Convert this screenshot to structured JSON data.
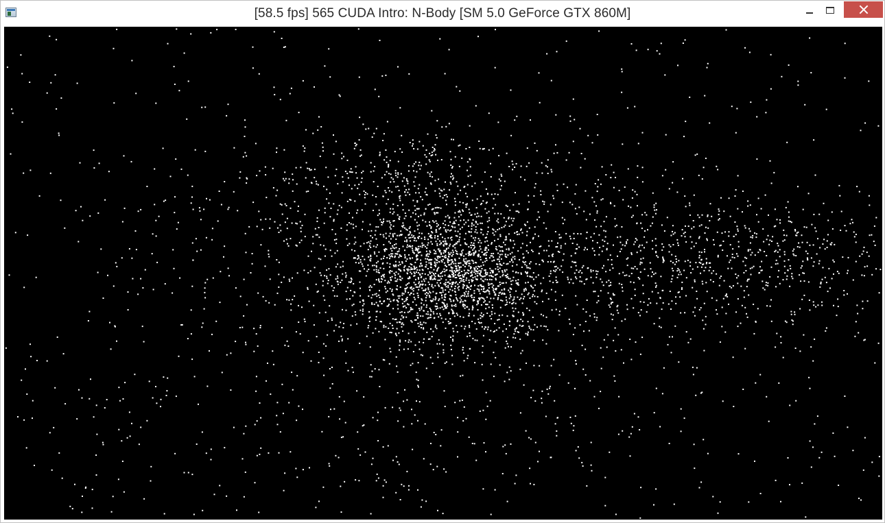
{
  "window": {
    "title": "[58.5 fps] 565 CUDA Intro: N-Body [SM 5.0 GeForce GTX 860M]",
    "icon": "application-window-icon"
  },
  "controls": {
    "minimize_icon": "minimize-icon",
    "maximize_icon": "maximize-icon",
    "close_icon": "close-icon"
  },
  "simulation": {
    "background_color": "#000000",
    "particle_color": "#ffffff",
    "close_button_color": "#c7504a"
  }
}
